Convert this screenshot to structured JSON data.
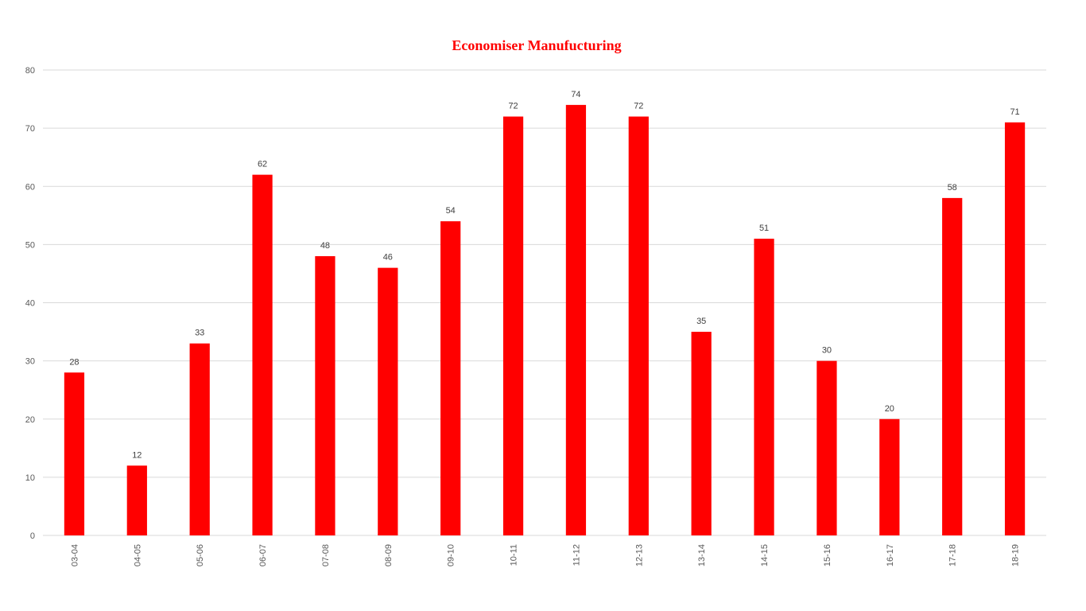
{
  "chart_data": {
    "type": "bar",
    "title": "Economiser Manufucturing",
    "categories": [
      "03-04",
      "04-05",
      "05-06",
      "06-07",
      "07-08",
      "08-09",
      "09-10",
      "10-11",
      "11-12",
      "12-13",
      "13-14",
      "14-15",
      "15-16",
      "16-17",
      "17-18",
      "18-19"
    ],
    "values": [
      28,
      12,
      33,
      62,
      48,
      46,
      54,
      72,
      74,
      72,
      35,
      51,
      30,
      20,
      58,
      71
    ],
    "xlabel": "",
    "ylabel": "",
    "ylim": [
      0,
      80
    ],
    "yticks": [
      0,
      10,
      20,
      30,
      40,
      50,
      60,
      70,
      80
    ],
    "grid": true,
    "legend": "none",
    "bar_color": "#ff0000",
    "data_labels": true
  }
}
